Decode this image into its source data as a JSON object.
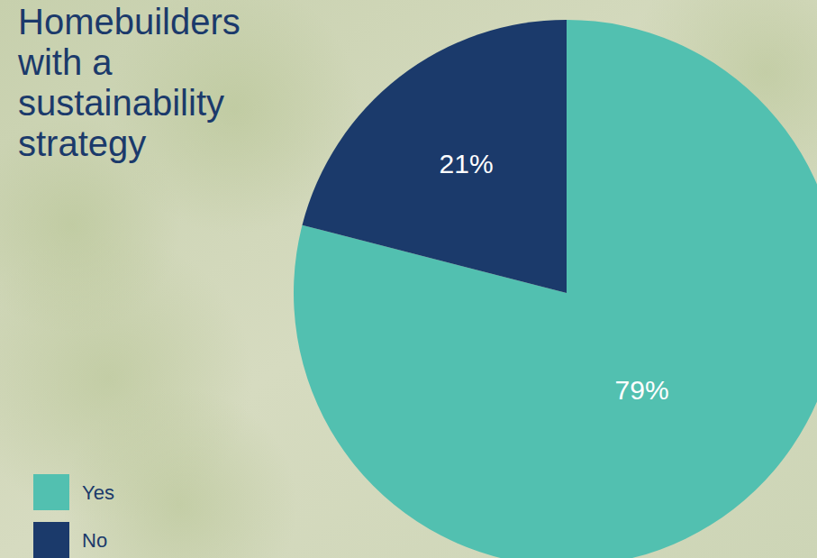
{
  "chart_data": {
    "type": "pie",
    "title": "Homebuilders with a sustainability strategy",
    "categories": [
      "Yes",
      "No"
    ],
    "values": [
      79,
      21
    ],
    "value_labels": [
      "79%",
      "21%"
    ],
    "colors": [
      "#52c0b0",
      "#1b3a6b"
    ],
    "data_labels": true,
    "legend": "lower left"
  }
}
